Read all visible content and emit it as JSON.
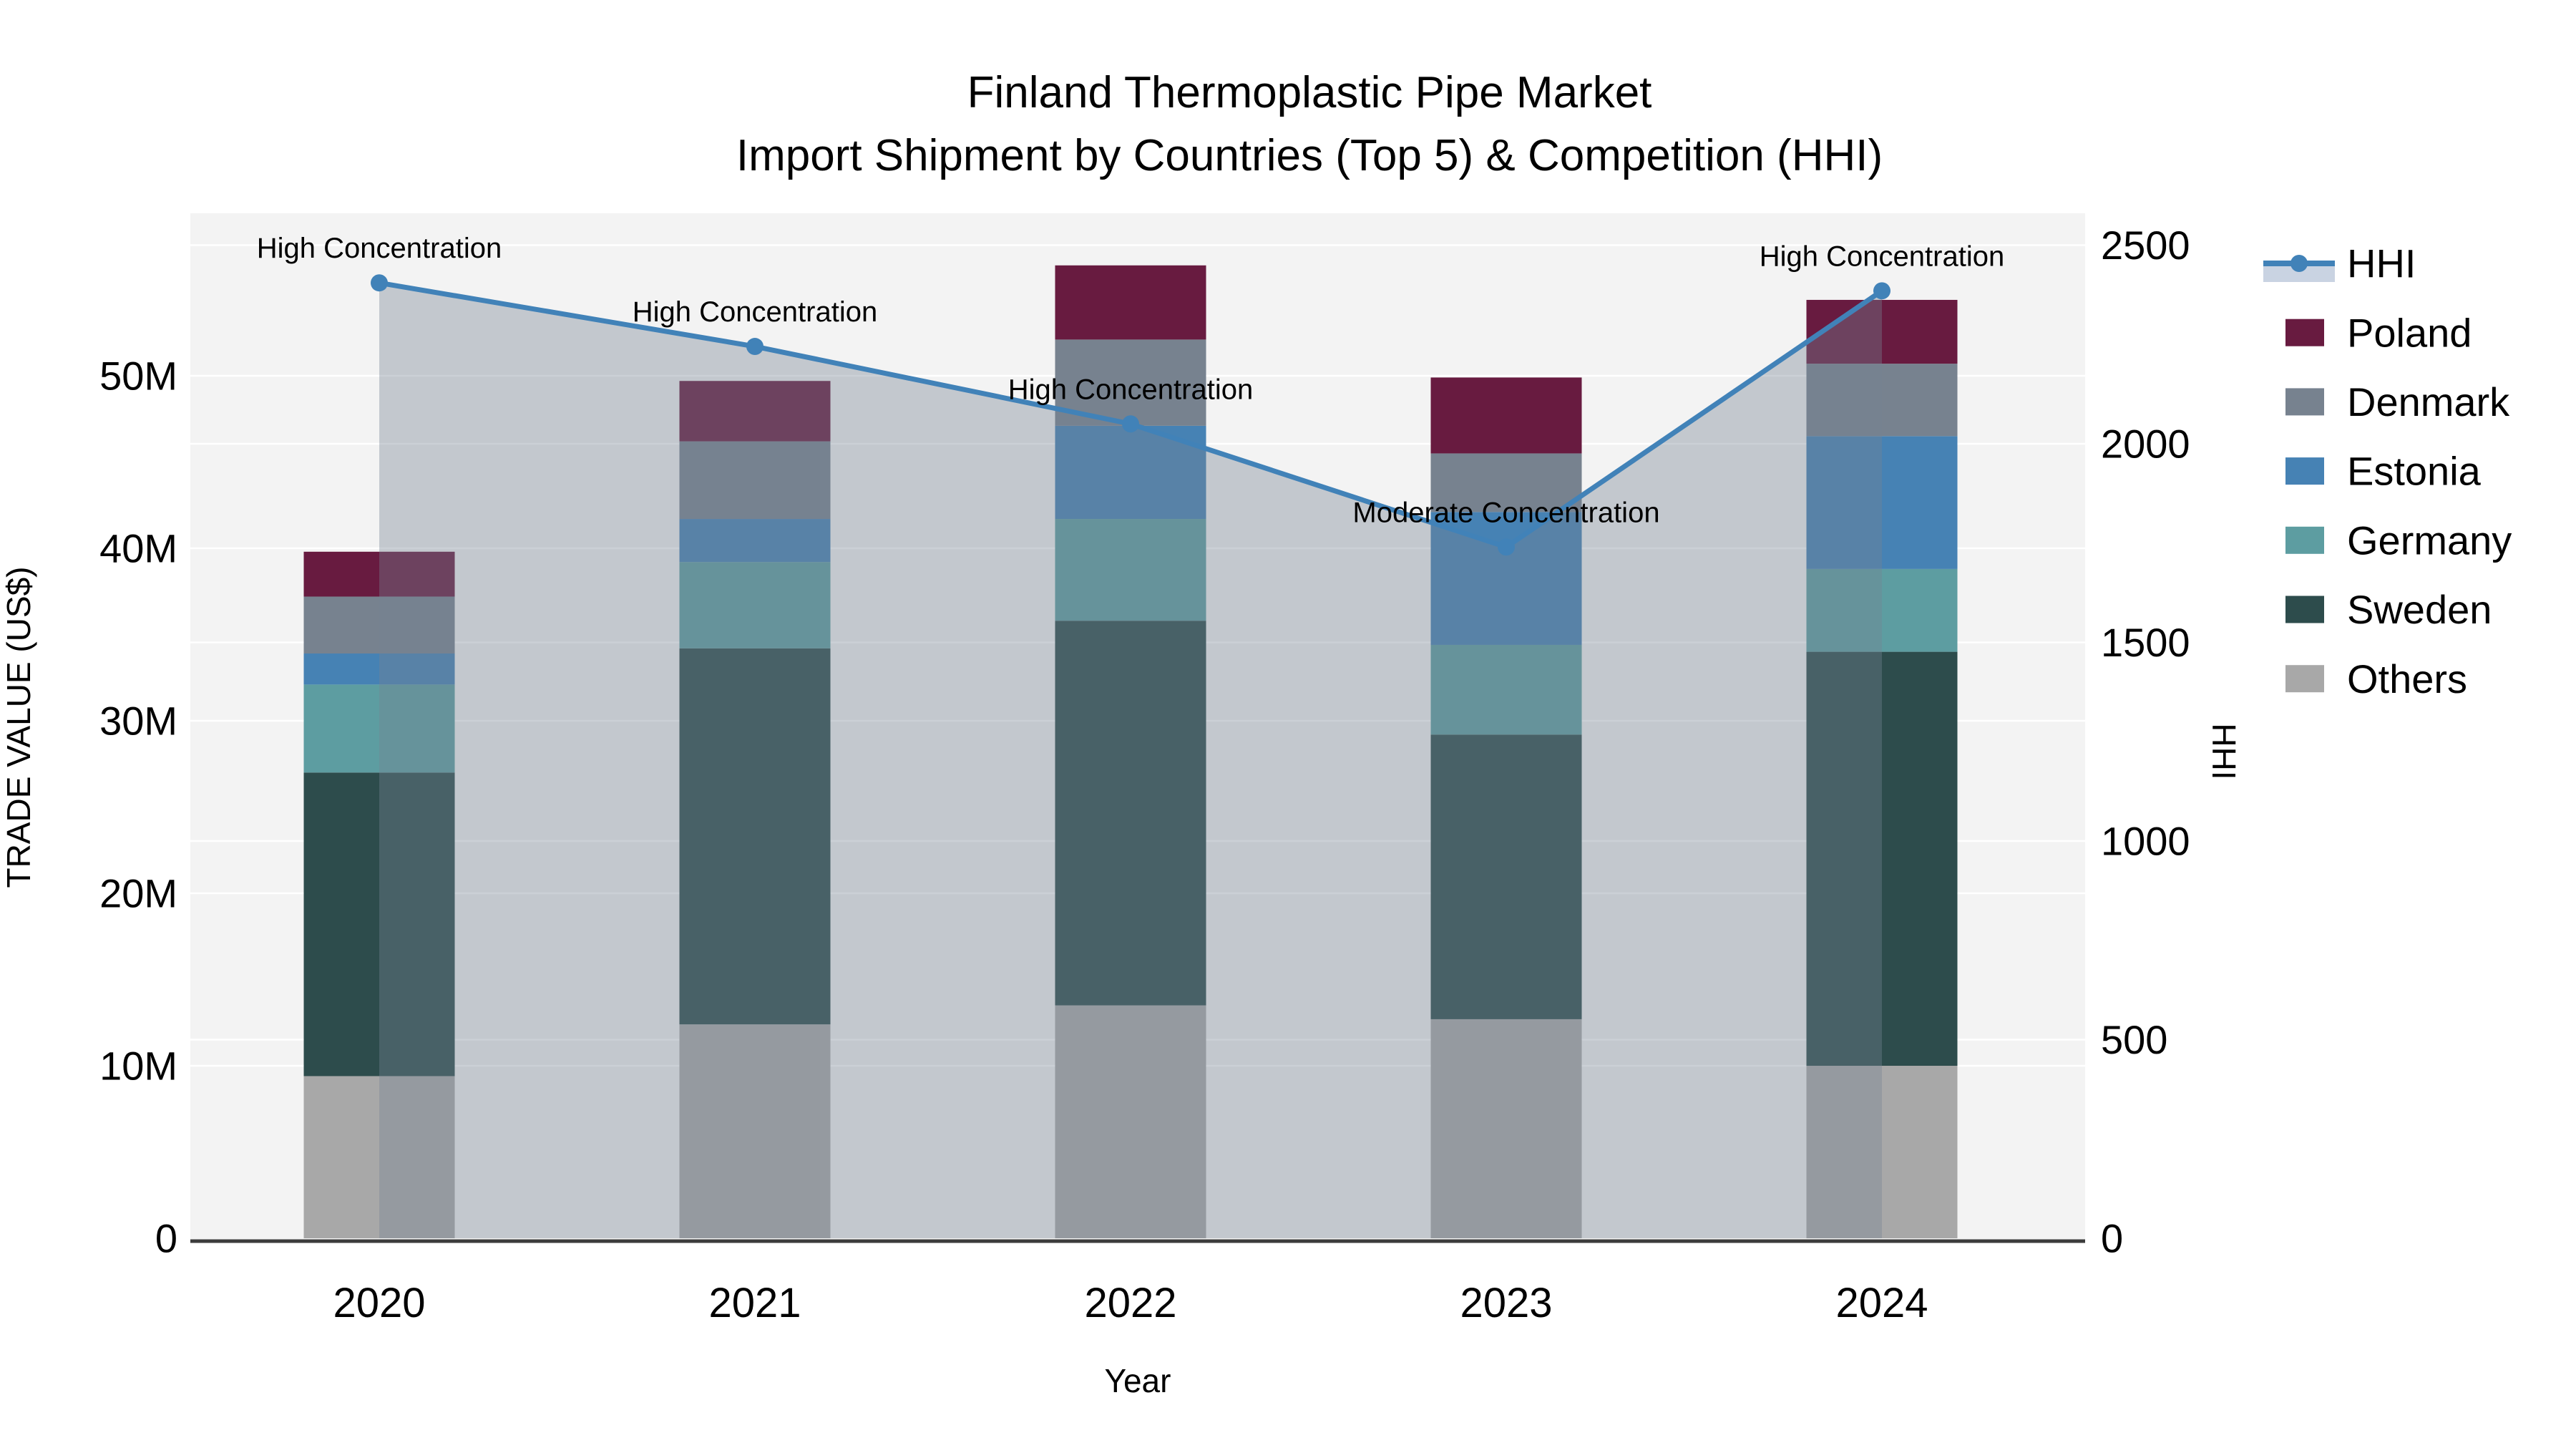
{
  "title": {
    "line1": "Finland Thermoplastic Pipe Market",
    "line2": "Import Shipment by Countries (Top 5) & Competition (HHI)"
  },
  "axes": {
    "y_left_title": "TRADE VALUE (US$)",
    "y_right_title": "HHI",
    "x_title": "Year",
    "y_left_ticks": [
      "0",
      "10M",
      "20M",
      "30M",
      "40M",
      "50M"
    ],
    "y_left_tick_values": [
      0,
      10,
      20,
      30,
      40,
      50
    ],
    "y_right_ticks": [
      "0",
      "500",
      "1000",
      "1500",
      "2000",
      "2500"
    ],
    "y_right_tick_values": [
      0,
      500,
      1000,
      1500,
      2000,
      2500
    ],
    "x_ticks": [
      "2020",
      "2021",
      "2022",
      "2023",
      "2024"
    ]
  },
  "legend": {
    "items": [
      {
        "label": "HHI",
        "type": "line",
        "color": "#4182b8"
      },
      {
        "label": "Poland",
        "type": "swatch",
        "color": "#681b40"
      },
      {
        "label": "Denmark",
        "type": "swatch",
        "color": "#77828f"
      },
      {
        "label": "Estonia",
        "type": "swatch",
        "color": "#4682b4"
      },
      {
        "label": "Germany",
        "type": "swatch",
        "color": "#5d9da1"
      },
      {
        "label": "Sweden",
        "type": "swatch",
        "color": "#2d4c4c"
      },
      {
        "label": "Others",
        "type": "swatch",
        "color": "#a8a8a8"
      }
    ]
  },
  "chart_data": {
    "type": "bar",
    "subtype": "stacked-bar-with-line",
    "title": "Finland Thermoplastic Pipe Market — Import Shipment by Countries (Top 5) & Competition (HHI)",
    "xlabel": "Year",
    "ylabel_left": "TRADE VALUE (US$)",
    "ylabel_right": "HHI",
    "categories": [
      "2020",
      "2021",
      "2022",
      "2023",
      "2024"
    ],
    "bar_unit": "million US$",
    "stack_order_bottom_to_top": [
      "Others",
      "Sweden",
      "Germany",
      "Estonia",
      "Denmark",
      "Poland"
    ],
    "series": [
      {
        "name": "Others",
        "color": "#a8a8a8",
        "values": [
          9.4,
          12.4,
          13.5,
          12.7,
          10.0
        ]
      },
      {
        "name": "Sweden",
        "color": "#2d4c4c",
        "values": [
          17.6,
          21.8,
          22.3,
          16.5,
          24.0
        ]
      },
      {
        "name": "Germany",
        "color": "#5d9da1",
        "values": [
          5.1,
          5.0,
          5.9,
          5.2,
          4.8
        ]
      },
      {
        "name": "Estonia",
        "color": "#4682b4",
        "values": [
          1.8,
          2.5,
          5.4,
          7.7,
          7.7
        ]
      },
      {
        "name": "Denmark",
        "color": "#77828f",
        "values": [
          3.3,
          4.5,
          5.0,
          3.4,
          4.2
        ]
      },
      {
        "name": "Poland",
        "color": "#681b40",
        "values": [
          2.6,
          3.5,
          4.3,
          4.4,
          3.7
        ]
      }
    ],
    "bar_totals": [
      39.8,
      49.7,
      56.4,
      49.9,
      54.4
    ],
    "line_series": {
      "name": "HHI",
      "color": "#4182b8",
      "area_fill": "rgba(119,132,148,0.38)",
      "values": [
        2405,
        2245,
        2050,
        1740,
        2385
      ]
    },
    "annotations": [
      {
        "x": "2020",
        "text": "High Concentration"
      },
      {
        "x": "2021",
        "text": "High Concentration"
      },
      {
        "x": "2022",
        "text": "High Concentration"
      },
      {
        "x": "2023",
        "text": "Moderate Concentration"
      },
      {
        "x": "2024",
        "text": "High Concentration"
      }
    ],
    "ylim_left_millions": [
      0,
      59.4
    ],
    "ylim_right": [
      0,
      2580
    ],
    "grid": true,
    "legend_position": "right"
  },
  "colors": {
    "plot_background": "#f3f3f3",
    "page_background": "#ffffff",
    "gridline": "#ffffff",
    "axis_line": "#3c3c3c",
    "hhi_line": "#4182b8",
    "hhi_area": "rgba(119,132,148,0.38)",
    "hhi_legend_band": "#c9d3e2",
    "text": "#000000"
  }
}
